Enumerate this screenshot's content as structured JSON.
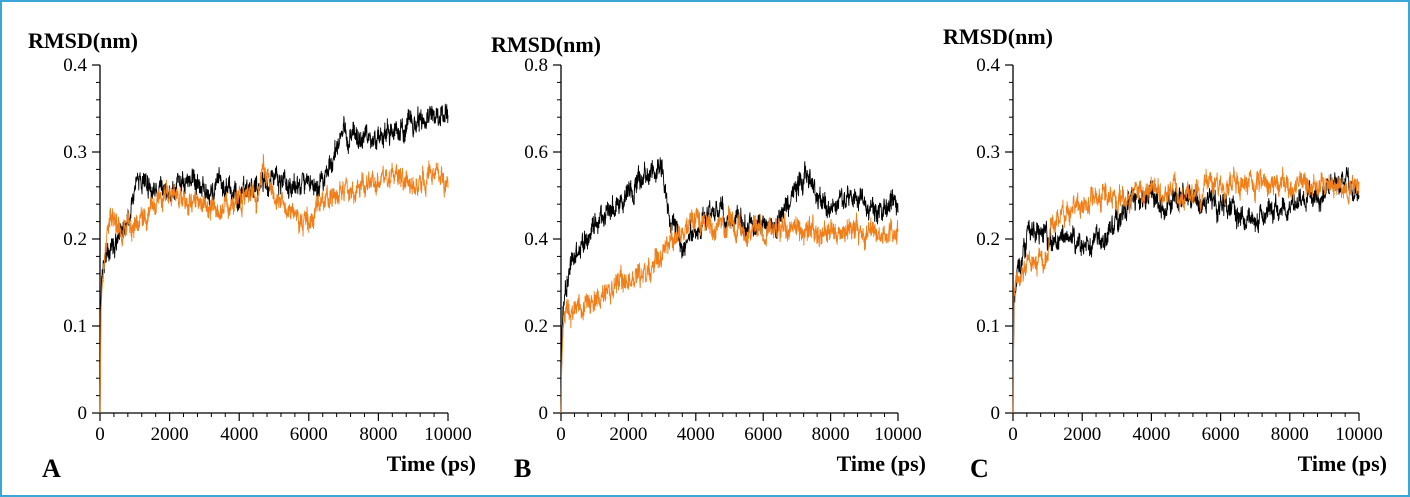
{
  "chart_data": [
    {
      "type": "line",
      "panel_label": "A",
      "ylabel": "RMSD(nm)",
      "xlabel": "Time (ps)",
      "xlim": [
        0,
        10000
      ],
      "ylim": [
        0,
        0.4
      ],
      "x_ticks": [
        0,
        2000,
        4000,
        6000,
        8000,
        10000
      ],
      "y_ticks": [
        0,
        0.1,
        0.2,
        0.3,
        0.4
      ],
      "y_tick_labels": [
        "0",
        "0.1",
        "0.2",
        "0.3",
        "0.4"
      ],
      "series": [
        {
          "color": "#000000",
          "x": [
            0,
            30,
            100,
            300,
            500,
            800,
            1000,
            1200,
            1500,
            2000,
            2500,
            3000,
            3500,
            4000,
            4500,
            5000,
            5500,
            6000,
            6500,
            6800,
            7000,
            7500,
            8000,
            8500,
            9000,
            9500,
            10000
          ],
          "y": [
            0,
            0.14,
            0.17,
            0.19,
            0.195,
            0.22,
            0.26,
            0.27,
            0.255,
            0.255,
            0.265,
            0.255,
            0.26,
            0.25,
            0.26,
            0.27,
            0.265,
            0.26,
            0.27,
            0.31,
            0.32,
            0.315,
            0.32,
            0.325,
            0.33,
            0.34,
            0.345
          ]
        },
        {
          "color": "#f07f1a",
          "x": [
            0,
            30,
            100,
            300,
            500,
            800,
            1000,
            1500,
            2000,
            2500,
            3000,
            3500,
            4000,
            4500,
            4700,
            5000,
            5500,
            6000,
            6500,
            7000,
            7500,
            8000,
            8500,
            9000,
            9500,
            10000
          ],
          "y": [
            0,
            0.12,
            0.16,
            0.24,
            0.21,
            0.215,
            0.22,
            0.24,
            0.245,
            0.25,
            0.24,
            0.235,
            0.245,
            0.25,
            0.29,
            0.255,
            0.23,
            0.22,
            0.245,
            0.255,
            0.26,
            0.265,
            0.27,
            0.265,
            0.275,
            0.27
          ]
        }
      ]
    },
    {
      "type": "line",
      "panel_label": "B",
      "ylabel": "RMSD(nm)",
      "xlabel": "Time (ps)",
      "xlim": [
        0,
        10000
      ],
      "ylim": [
        0,
        0.8
      ],
      "x_ticks": [
        0,
        2000,
        4000,
        6000,
        8000,
        10000
      ],
      "y_ticks": [
        0,
        0.2,
        0.4,
        0.6,
        0.8
      ],
      "y_tick_labels": [
        "0",
        "0.2",
        "0.4",
        "0.6",
        "0.8"
      ],
      "series": [
        {
          "color": "#000000",
          "x": [
            0,
            30,
            100,
            300,
            500,
            800,
            1000,
            1500,
            2000,
            2500,
            2800,
            3000,
            3300,
            3600,
            4000,
            4500,
            5000,
            5500,
            6000,
            6500,
            7000,
            7300,
            7600,
            8000,
            8500,
            9000,
            9500,
            10000
          ],
          "y": [
            0,
            0.18,
            0.28,
            0.35,
            0.37,
            0.4,
            0.44,
            0.46,
            0.5,
            0.55,
            0.58,
            0.55,
            0.44,
            0.38,
            0.42,
            0.47,
            0.44,
            0.42,
            0.42,
            0.45,
            0.52,
            0.55,
            0.5,
            0.47,
            0.5,
            0.48,
            0.47,
            0.48
          ]
        },
        {
          "color": "#f07f1a",
          "x": [
            0,
            30,
            100,
            300,
            500,
            1000,
            1500,
            2000,
            2500,
            3000,
            3500,
            4000,
            4500,
            5000,
            5500,
            6000,
            6500,
            7000,
            7500,
            8000,
            8500,
            9000,
            9500,
            10000
          ],
          "y": [
            0,
            0.15,
            0.2,
            0.22,
            0.24,
            0.27,
            0.29,
            0.3,
            0.33,
            0.37,
            0.42,
            0.44,
            0.42,
            0.43,
            0.41,
            0.42,
            0.43,
            0.42,
            0.41,
            0.42,
            0.41,
            0.42,
            0.41,
            0.42
          ]
        }
      ]
    },
    {
      "type": "line",
      "panel_label": "C",
      "ylabel": "RMSD(nm)",
      "xlabel": "Time (ps)",
      "xlim": [
        0,
        10000
      ],
      "ylim": [
        0,
        0.4
      ],
      "x_ticks": [
        0,
        2000,
        4000,
        6000,
        8000,
        10000
      ],
      "y_ticks": [
        0,
        0.1,
        0.2,
        0.3,
        0.4
      ],
      "y_tick_labels": [
        "0",
        "0.1",
        "0.2",
        "0.3",
        "0.4"
      ],
      "series": [
        {
          "color": "#000000",
          "x": [
            0,
            30,
            100,
            300,
            500,
            800,
            1000,
            1500,
            2000,
            2500,
            3000,
            3500,
            4000,
            4500,
            5000,
            5500,
            6000,
            6500,
            7000,
            7500,
            8000,
            8500,
            9000,
            9500,
            10000
          ],
          "y": [
            0,
            0.13,
            0.16,
            0.19,
            0.2,
            0.21,
            0.2,
            0.2,
            0.19,
            0.2,
            0.22,
            0.25,
            0.25,
            0.24,
            0.245,
            0.24,
            0.235,
            0.23,
            0.22,
            0.235,
            0.24,
            0.25,
            0.255,
            0.27,
            0.25
          ]
        },
        {
          "color": "#f07f1a",
          "x": [
            0,
            30,
            100,
            300,
            500,
            800,
            1000,
            1100,
            1500,
            2000,
            2500,
            3000,
            3500,
            4000,
            4500,
            5000,
            5500,
            6000,
            6500,
            7000,
            7500,
            8000,
            8500,
            9000,
            9500,
            10000
          ],
          "y": [
            0,
            0.14,
            0.15,
            0.16,
            0.17,
            0.18,
            0.18,
            0.22,
            0.23,
            0.24,
            0.25,
            0.245,
            0.25,
            0.25,
            0.255,
            0.25,
            0.255,
            0.255,
            0.26,
            0.265,
            0.265,
            0.265,
            0.26,
            0.265,
            0.26,
            0.265
          ]
        }
      ]
    }
  ]
}
